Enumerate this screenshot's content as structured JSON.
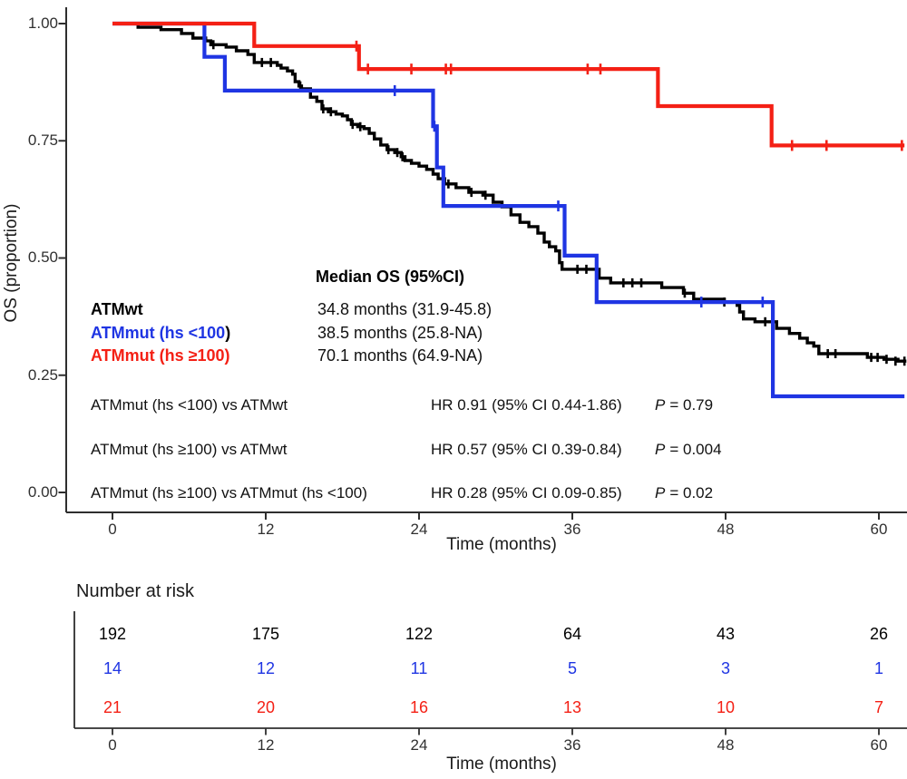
{
  "axis": {
    "color": "#2e2e2e",
    "tick_label_color": "#303030"
  },
  "chart_data": {
    "type": "line",
    "subtype": "kaplan-meier-step",
    "title": "",
    "xlabel": "Time (months)",
    "ylabel": "OS (proportion)",
    "xlim": [
      0,
      62.2
    ],
    "ylim": [
      0,
      1.0
    ],
    "grid": false,
    "xticks": [
      0,
      12,
      24,
      36,
      48,
      60
    ],
    "yticks": [
      1.0,
      0.75,
      0.5,
      0.25,
      0
    ],
    "xtick_labels": [
      "0",
      "12",
      "24",
      "36",
      "48",
      "60"
    ],
    "ytick_labels": [
      "1.00",
      "0.75",
      "0.50",
      "0.25",
      "0.00"
    ],
    "series": [
      {
        "id": "atmwt",
        "name": "ATMwt",
        "color": "#000000",
        "width": 3.4,
        "tick": 5,
        "end": 62.15,
        "steps": [
          [
            0,
            1.0
          ],
          [
            2.0,
            0.992
          ],
          [
            3.8,
            0.987
          ],
          [
            5.4,
            0.979
          ],
          [
            6.3,
            0.969
          ],
          [
            7.3,
            0.963
          ],
          [
            7.7,
            0.955
          ],
          [
            8.9,
            0.95
          ],
          [
            9.7,
            0.942
          ],
          [
            10.6,
            0.934
          ],
          [
            11.1,
            0.917
          ],
          [
            12.9,
            0.911
          ],
          [
            13.2,
            0.905
          ],
          [
            13.7,
            0.899
          ],
          [
            14.1,
            0.892
          ],
          [
            14.3,
            0.876
          ],
          [
            14.6,
            0.867
          ],
          [
            14.8,
            0.861
          ],
          [
            15.5,
            0.843
          ],
          [
            16.0,
            0.834
          ],
          [
            16.4,
            0.818
          ],
          [
            16.9,
            0.812
          ],
          [
            17.5,
            0.807
          ],
          [
            18.0,
            0.803
          ],
          [
            18.4,
            0.795
          ],
          [
            18.7,
            0.785
          ],
          [
            19.2,
            0.78
          ],
          [
            19.7,
            0.776
          ],
          [
            20.1,
            0.766
          ],
          [
            20.5,
            0.754
          ],
          [
            21.0,
            0.741
          ],
          [
            21.5,
            0.731
          ],
          [
            22.1,
            0.725
          ],
          [
            22.6,
            0.716
          ],
          [
            22.9,
            0.708
          ],
          [
            23.4,
            0.702
          ],
          [
            24.0,
            0.696
          ],
          [
            24.6,
            0.689
          ],
          [
            25.1,
            0.679
          ],
          [
            25.5,
            0.669
          ],
          [
            26.0,
            0.658
          ],
          [
            26.9,
            0.65
          ],
          [
            27.9,
            0.64
          ],
          [
            29.0,
            0.634
          ],
          [
            29.8,
            0.619
          ],
          [
            30.5,
            0.609
          ],
          [
            31.2,
            0.592
          ],
          [
            31.9,
            0.576
          ],
          [
            32.6,
            0.567
          ],
          [
            33.3,
            0.553
          ],
          [
            33.8,
            0.534
          ],
          [
            34.2,
            0.524
          ],
          [
            34.7,
            0.515
          ],
          [
            35.0,
            0.49
          ],
          [
            35.2,
            0.476
          ],
          [
            38.1,
            0.457
          ],
          [
            39.0,
            0.447
          ],
          [
            43.0,
            0.437
          ],
          [
            44.7,
            0.425
          ],
          [
            45.5,
            0.412
          ],
          [
            47.9,
            0.406
          ],
          [
            48.9,
            0.399
          ],
          [
            49.1,
            0.385
          ],
          [
            49.4,
            0.37
          ],
          [
            50.3,
            0.364
          ],
          [
            52.0,
            0.35
          ],
          [
            53.0,
            0.339
          ],
          [
            53.8,
            0.329
          ],
          [
            54.4,
            0.319
          ],
          [
            54.9,
            0.312
          ],
          [
            55.3,
            0.296
          ],
          [
            59.1,
            0.288
          ],
          [
            60.4,
            0.284
          ],
          [
            61.5,
            0.28
          ]
        ],
        "censors": [
          [
            7.9,
            0.955
          ],
          [
            11.7,
            0.917
          ],
          [
            12.4,
            0.917
          ],
          [
            14.7,
            0.867
          ],
          [
            16.5,
            0.818
          ],
          [
            17.1,
            0.812
          ],
          [
            18.8,
            0.785
          ],
          [
            19.4,
            0.78
          ],
          [
            21.6,
            0.731
          ],
          [
            22.3,
            0.725
          ],
          [
            22.7,
            0.716
          ],
          [
            26.3,
            0.658
          ],
          [
            28.1,
            0.64
          ],
          [
            29.2,
            0.634
          ],
          [
            36.4,
            0.476
          ],
          [
            37.1,
            0.476
          ],
          [
            40.0,
            0.447
          ],
          [
            40.7,
            0.447
          ],
          [
            41.4,
            0.447
          ],
          [
            44.8,
            0.425
          ],
          [
            47.9,
            0.406
          ],
          [
            51.1,
            0.364
          ],
          [
            56.0,
            0.296
          ],
          [
            56.6,
            0.296
          ],
          [
            59.4,
            0.288
          ],
          [
            59.9,
            0.288
          ],
          [
            60.6,
            0.284
          ],
          [
            61.3,
            0.28
          ],
          [
            62.0,
            0.28
          ]
        ]
      },
      {
        "id": "atmmut-hs-lt100",
        "name": "ATMmut (hs <100)",
        "color": "#1f35e3",
        "width": 4.2,
        "tick": 6,
        "end": 62.0,
        "steps": [
          [
            0,
            1.0
          ],
          [
            7.2,
            0.929
          ],
          [
            8.8,
            0.857
          ],
          [
            25.1,
            0.781
          ],
          [
            25.4,
            0.693
          ],
          [
            25.9,
            0.611
          ],
          [
            35.4,
            0.505
          ],
          [
            37.9,
            0.406
          ],
          [
            51.7,
            0.205
          ]
        ],
        "censors": [
          [
            22.1,
            0.857
          ],
          [
            25.2,
            0.781
          ],
          [
            34.9,
            0.611
          ],
          [
            46.1,
            0.406
          ],
          [
            50.9,
            0.406
          ]
        ]
      },
      {
        "id": "atmmut-hs-ge100",
        "name": "ATMmut (hs ≥100)",
        "color": "#f42015",
        "width": 4.2,
        "tick": 6,
        "end": 62.0,
        "steps": [
          [
            0,
            1.0
          ],
          [
            11.1,
            0.952
          ],
          [
            19.3,
            0.903
          ],
          [
            42.7,
            0.824
          ],
          [
            51.6,
            0.74
          ]
        ],
        "censors": [
          [
            19.1,
            0.952
          ],
          [
            20.0,
            0.903
          ],
          [
            23.4,
            0.903
          ],
          [
            26.1,
            0.903
          ],
          [
            26.5,
            0.903
          ],
          [
            37.2,
            0.903
          ],
          [
            38.2,
            0.903
          ],
          [
            53.2,
            0.74
          ],
          [
            55.9,
            0.74
          ],
          [
            61.8,
            0.74
          ]
        ]
      }
    ]
  },
  "annotations": {
    "median_header": "Median OS (95%CI)",
    "groups": [
      {
        "label": "ATMwt",
        "suffix": "",
        "median": "34.8 months (31.9-45.8)",
        "color": "#000000"
      },
      {
        "label": "ATMmut (hs <100",
        "suffix": ")",
        "median": "38.5 months (25.8-NA)",
        "color": "#1f35e3"
      },
      {
        "label": "ATMmut (hs ≥100)",
        "suffix": "",
        "median": "70.1 months (64.9-NA)",
        "color": "#f42015"
      }
    ],
    "comparisons": [
      {
        "label": "ATMmut (hs <100) vs ATMwt",
        "hr": "HR 0.91 (95% CI 0.44-1.86)",
        "p_label": "P",
        "p_value": "= 0.79"
      },
      {
        "label": "ATMmut (hs ≥100) vs ATMwt",
        "hr": "HR 0.57 (95% CI 0.39-0.84)",
        "p_label": "P",
        "p_value": "= 0.004"
      },
      {
        "label": "ATMmut (hs ≥100) vs ATMmut (hs <100)",
        "hr": "HR 0.28 (95% CI 0.09-0.85)",
        "p_label": "P",
        "p_value": "= 0.02"
      }
    ]
  },
  "risk_table": {
    "heading": "Number at risk",
    "xlabel": "Time (months)",
    "xtick_labels": [
      "0",
      "12",
      "24",
      "36",
      "48",
      "60"
    ],
    "rows": [
      {
        "group": "ATMwt",
        "color": "#000000",
        "values": [
          "192",
          "175",
          "122",
          "64",
          "43",
          "26"
        ]
      },
      {
        "group": "ATMmut (hs <100)",
        "color": "#1f35e3",
        "values": [
          "14",
          "12",
          "11",
          "5",
          "3",
          "1"
        ]
      },
      {
        "group": "ATMmut (hs ≥100)",
        "color": "#f42015",
        "values": [
          "21",
          "20",
          "16",
          "13",
          "10",
          "7"
        ]
      }
    ]
  }
}
